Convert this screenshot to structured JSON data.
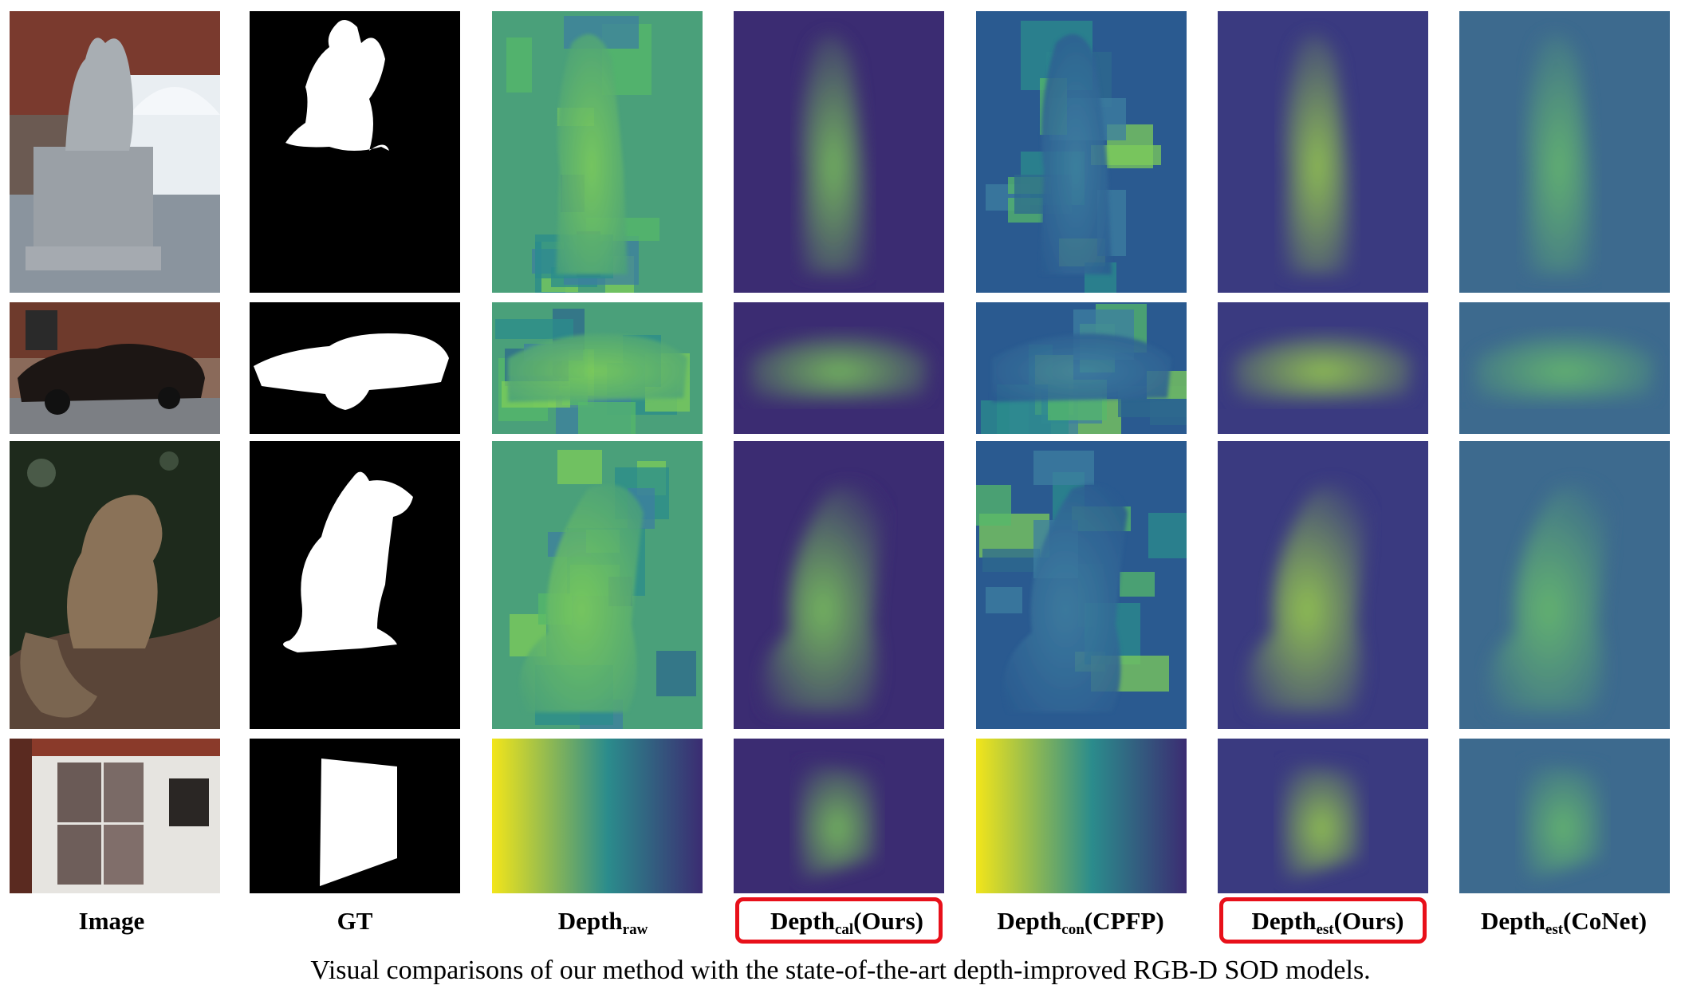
{
  "figure": {
    "columns": [
      {
        "key": "image",
        "label": "Image",
        "sub": "",
        "suffix": "",
        "highlighted": false
      },
      {
        "key": "gt",
        "label": "GT",
        "sub": "",
        "suffix": "",
        "highlighted": false
      },
      {
        "key": "depth_raw",
        "label": "Depth",
        "sub": "raw",
        "suffix": "",
        "highlighted": false
      },
      {
        "key": "depth_cal",
        "label": "Depth",
        "sub": "cal",
        "suffix": "(Ours)",
        "highlighted": true
      },
      {
        "key": "depth_con",
        "label": "Depth",
        "sub": "con",
        "suffix": "(CPFP)",
        "highlighted": false
      },
      {
        "key": "depth_est",
        "label": "Depth",
        "sub": "est",
        "suffix": "(Ours)",
        "highlighted": true
      },
      {
        "key": "depth_est_conet",
        "label": "Depth",
        "sub": "est",
        "suffix": "(CoNet)",
        "highlighted": false
      }
    ],
    "rows": [
      {
        "subject": "statue"
      },
      {
        "subject": "car"
      },
      {
        "subject": "squirrel"
      },
      {
        "subject": "wall panels"
      }
    ],
    "caption": "Visual comparisons of our method with the state-of-the-art depth-improved RGB-D SOD models.",
    "colors": {
      "highlight": "#e8101a",
      "viridis_dark": "#3b2c72",
      "viridis_mid": "#2b8c8c",
      "viridis_light": "#7dcc5a",
      "viridis_yellow": "#f2e51a"
    }
  }
}
